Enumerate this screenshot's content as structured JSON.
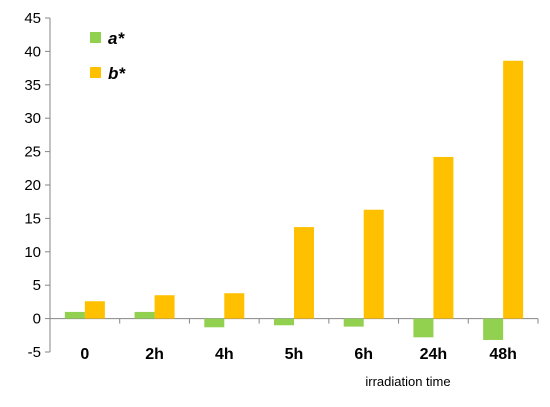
{
  "chart_data": {
    "type": "bar",
    "categories": [
      "0",
      "2h",
      "4h",
      "5h",
      "6h",
      "24h",
      "48h"
    ],
    "series": [
      {
        "name": "a*",
        "values": [
          1.0,
          1.0,
          -1.3,
          -1.0,
          -1.2,
          -2.8,
          -3.2
        ]
      },
      {
        "name": "b*",
        "values": [
          2.6,
          3.5,
          3.8,
          13.7,
          16.3,
          24.2,
          38.6
        ]
      }
    ],
    "title": "",
    "xlabel": "irradiation time",
    "ylabel": "",
    "ylim": [
      -5,
      45
    ],
    "yticks": [
      45,
      40,
      35,
      30,
      25,
      20,
      15,
      10,
      5,
      0,
      -5
    ],
    "grid": false,
    "legend_position": "top-left",
    "colors": {
      "a*": "#92D050",
      "b*": "#FFC000"
    }
  }
}
